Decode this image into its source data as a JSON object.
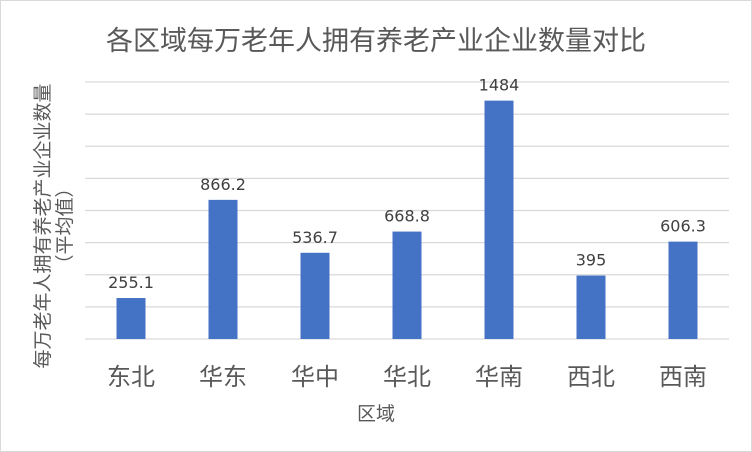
{
  "chart_data": {
    "type": "bar",
    "title": "各区域每万老年人拥有养老产业企业数量对比",
    "xlabel": "区域",
    "ylabel": "每万老年人拥有养老产业企业数量",
    "ylabel_sub": "（平均值）",
    "categories": [
      "东北",
      "华东",
      "华中",
      "华北",
      "华南",
      "西北",
      "西南"
    ],
    "values": [
      255.1,
      866.2,
      536.7,
      668.8,
      1484,
      395,
      606.3
    ],
    "data_labels": [
      "255.1",
      "866.2",
      "536.7",
      "668.8",
      "1484",
      "395",
      "606.3"
    ],
    "ylim": [
      0,
      1600
    ],
    "grid_step": 200,
    "grid": true,
    "y_tick_labels_shown": false,
    "legend": "none",
    "bar_color": "#4472C4"
  }
}
